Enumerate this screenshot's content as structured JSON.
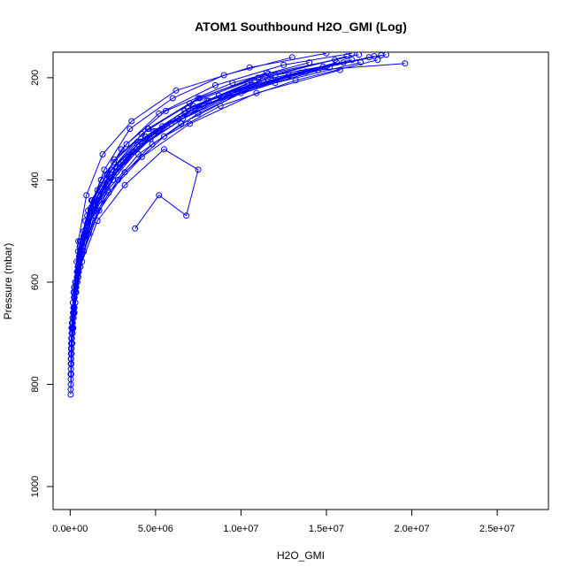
{
  "chart_data": {
    "type": "line",
    "title": "ATOM1 Southbound H2O_GMI (Log)",
    "xlabel": "H2O_GMI",
    "ylabel": "Pressure (mbar)",
    "xlim": [
      -1000000,
      28000000
    ],
    "ylim": [
      1045,
      150
    ],
    "y_reversed": true,
    "grid": false,
    "legend": "none",
    "markers": "open-circle",
    "series_color": "#0000ff",
    "x_ticks": [
      {
        "value": 0,
        "label": "0.0e+00"
      },
      {
        "value": 5000000,
        "label": "5.0e+06"
      },
      {
        "value": 10000000,
        "label": "1.0e+07"
      },
      {
        "value": 15000000,
        "label": "1.5e+07"
      },
      {
        "value": 20000000,
        "label": "2.0e+07"
      },
      {
        "value": 25000000,
        "label": "2.5e+07"
      }
    ],
    "y_ticks": [
      {
        "value": 200,
        "label": "200"
      },
      {
        "value": 400,
        "label": "400"
      },
      {
        "value": 600,
        "label": "600"
      },
      {
        "value": 800,
        "label": "800"
      },
      {
        "value": 1000,
        "label": "1000"
      }
    ],
    "series": [
      {
        "values": [
          [
            30000,
            820
          ],
          [
            60000,
            780
          ],
          [
            120000,
            720
          ],
          [
            250000,
            650
          ],
          [
            500000,
            560
          ],
          [
            1000000,
            470
          ],
          [
            2000000,
            380
          ],
          [
            3500000,
            300
          ],
          [
            6000000,
            240
          ],
          [
            9000000,
            195
          ],
          [
            13000000,
            160
          ]
        ]
      },
      {
        "values": [
          [
            40000,
            800
          ],
          [
            90000,
            740
          ],
          [
            200000,
            670
          ],
          [
            400000,
            590
          ],
          [
            800000,
            500
          ],
          [
            1600000,
            420
          ],
          [
            3000000,
            340
          ],
          [
            5200000,
            270
          ],
          [
            8500000,
            215
          ],
          [
            12500000,
            175
          ],
          [
            16500000,
            152
          ]
        ]
      },
      {
        "values": [
          [
            50000,
            760
          ],
          [
            110000,
            700
          ],
          [
            260000,
            630
          ],
          [
            600000,
            540
          ],
          [
            1200000,
            460
          ],
          [
            2400000,
            380
          ],
          [
            4200000,
            310
          ],
          [
            7000000,
            250
          ],
          [
            11000000,
            200
          ],
          [
            15500000,
            165
          ]
        ]
      },
      {
        "values": [
          [
            60000,
            730
          ],
          [
            150000,
            680
          ],
          [
            350000,
            610
          ],
          [
            750000,
            530
          ],
          [
            1500000,
            450
          ],
          [
            2900000,
            375
          ],
          [
            5000000,
            305
          ],
          [
            8000000,
            245
          ],
          [
            12000000,
            195
          ],
          [
            18500000,
            155
          ]
        ]
      },
      {
        "values": [
          [
            30000,
            780
          ],
          [
            70000,
            720
          ],
          [
            160000,
            640
          ],
          [
            380000,
            560
          ],
          [
            900000,
            480
          ],
          [
            1800000,
            400
          ],
          [
            3300000,
            330
          ],
          [
            5600000,
            265
          ],
          [
            9500000,
            210
          ],
          [
            14000000,
            170
          ]
        ]
      },
      {
        "values": [
          [
            80000,
            710
          ],
          [
            220000,
            650
          ],
          [
            500000,
            580
          ],
          [
            1100000,
            500
          ],
          [
            2200000,
            420
          ],
          [
            4000000,
            350
          ],
          [
            6500000,
            290
          ],
          [
            10000000,
            230
          ],
          [
            14500000,
            185
          ],
          [
            19600000,
            172
          ]
        ]
      },
      {
        "values": [
          [
            45000,
            770
          ],
          [
            100000,
            710
          ],
          [
            230000,
            620
          ],
          [
            480000,
            520
          ],
          [
            950000,
            430
          ],
          [
            1900000,
            350
          ],
          [
            3600000,
            285
          ],
          [
            6200000,
            225
          ],
          [
            10500000,
            180
          ],
          [
            15000000,
            152
          ]
        ]
      },
      {
        "values": [
          [
            70000,
            740
          ],
          [
            180000,
            690
          ],
          [
            420000,
            600
          ],
          [
            850000,
            510
          ],
          [
            1700000,
            440
          ],
          [
            3100000,
            365
          ],
          [
            5400000,
            295
          ],
          [
            8700000,
            235
          ],
          [
            13500000,
            190
          ],
          [
            17500000,
            160
          ]
        ]
      },
      {
        "values": [
          [
            55000,
            750
          ],
          [
            130000,
            680
          ],
          [
            300000,
            600
          ],
          [
            650000,
            520
          ],
          [
            1300000,
            440
          ],
          [
            2600000,
            360
          ],
          [
            4600000,
            300
          ],
          [
            7600000,
            240
          ],
          [
            11500000,
            190
          ]
        ]
      },
      {
        "values": [
          [
            90000,
            720
          ],
          [
            250000,
            660
          ],
          [
            600000,
            570
          ],
          [
            1400000,
            470
          ],
          [
            2800000,
            400
          ],
          [
            4800000,
            330
          ],
          [
            7500000,
            270
          ],
          [
            11000000,
            215
          ],
          [
            16000000,
            170
          ]
        ]
      },
      {
        "values": [
          [
            35000,
            790
          ],
          [
            80000,
            730
          ],
          [
            190000,
            660
          ],
          [
            450000,
            580
          ],
          [
            1000000,
            490
          ],
          [
            2100000,
            410
          ],
          [
            3900000,
            340
          ],
          [
            6600000,
            280
          ],
          [
            10200000,
            225
          ],
          [
            15200000,
            180
          ]
        ]
      },
      {
        "values": [
          [
            65000,
            720
          ],
          [
            170000,
            660
          ],
          [
            400000,
            580
          ],
          [
            1000000,
            490
          ],
          [
            2500000,
            400
          ],
          [
            4500000,
            320
          ],
          [
            7300000,
            260
          ],
          [
            12000000,
            210
          ],
          [
            17000000,
            170
          ]
        ]
      },
      {
        "values": [
          [
            40000,
            760
          ],
          [
            95000,
            700
          ],
          [
            220000,
            630
          ],
          [
            520000,
            550
          ],
          [
            1150000,
            470
          ],
          [
            2300000,
            395
          ],
          [
            4100000,
            325
          ],
          [
            6900000,
            260
          ],
          [
            10800000,
            205
          ],
          [
            16200000,
            158
          ]
        ]
      },
      {
        "values": [
          [
            100000,
            700
          ],
          [
            300000,
            640
          ],
          [
            700000,
            560
          ],
          [
            1600000,
            480
          ],
          [
            3200000,
            410
          ],
          [
            5500000,
            340
          ],
          [
            7500000,
            380
          ],
          [
            6800000,
            470
          ],
          [
            5200000,
            430
          ],
          [
            3800000,
            495
          ]
        ]
      },
      {
        "values": [
          [
            50000,
            730
          ],
          [
            140000,
            670
          ],
          [
            330000,
            600
          ],
          [
            780000,
            510
          ],
          [
            1650000,
            430
          ],
          [
            3400000,
            355
          ],
          [
            5900000,
            290
          ],
          [
            9300000,
            235
          ],
          [
            13800000,
            188
          ],
          [
            18200000,
            156
          ]
        ]
      },
      {
        "values": [
          [
            60000,
            760
          ],
          [
            140000,
            700
          ],
          [
            320000,
            620
          ],
          [
            700000,
            540
          ],
          [
            1400000,
            460
          ],
          [
            2700000,
            385
          ],
          [
            4700000,
            320
          ],
          [
            7800000,
            255
          ],
          [
            11800000,
            205
          ]
        ]
      },
      {
        "values": [
          [
            30000,
            810
          ],
          [
            65000,
            760
          ],
          [
            150000,
            690
          ],
          [
            340000,
            610
          ],
          [
            720000,
            530
          ],
          [
            1450000,
            450
          ],
          [
            2750000,
            375
          ],
          [
            4900000,
            305
          ],
          [
            8100000,
            245
          ],
          [
            12800000,
            195
          ],
          [
            17800000,
            158
          ]
        ]
      },
      {
        "values": [
          [
            80000,
            690
          ],
          [
            200000,
            620
          ],
          [
            460000,
            540
          ],
          [
            1050000,
            460
          ],
          [
            2150000,
            390
          ],
          [
            3950000,
            325
          ],
          [
            6700000,
            265
          ],
          [
            10400000,
            212
          ]
        ]
      },
      {
        "values": [
          [
            45000,
            740
          ],
          [
            105000,
            680
          ],
          [
            240000,
            610
          ],
          [
            560000,
            530
          ],
          [
            1200000,
            455
          ],
          [
            2450000,
            380
          ],
          [
            4400000,
            315
          ],
          [
            7200000,
            255
          ],
          [
            11300000,
            205
          ],
          [
            16500000,
            165
          ]
        ]
      },
      {
        "values": [
          [
            70000,
            710
          ],
          [
            190000,
            650
          ],
          [
            450000,
            570
          ],
          [
            1000000,
            490
          ],
          [
            2000000,
            410
          ],
          [
            3700000,
            345
          ],
          [
            6300000,
            280
          ],
          [
            9800000,
            225
          ],
          [
            14800000,
            178
          ]
        ]
      },
      {
        "values": [
          [
            55000,
            740
          ],
          [
            150000,
            690
          ],
          [
            350000,
            620
          ],
          [
            800000,
            540
          ],
          [
            1700000,
            460
          ],
          [
            3200000,
            385
          ],
          [
            5500000,
            315
          ],
          [
            8800000,
            255
          ],
          [
            13200000,
            205
          ],
          [
            18000000,
            165
          ]
        ]
      },
      {
        "values": [
          [
            35000,
            780
          ],
          [
            85000,
            720
          ],
          [
            200000,
            650
          ],
          [
            470000,
            570
          ],
          [
            1050000,
            485
          ],
          [
            2150000,
            400
          ],
          [
            3950000,
            330
          ],
          [
            6700000,
            270
          ],
          [
            10600000,
            215
          ],
          [
            15600000,
            170
          ]
        ]
      },
      {
        "values": [
          [
            75000,
            720
          ],
          [
            210000,
            660
          ],
          [
            480000,
            590
          ],
          [
            1080000,
            505
          ],
          [
            2250000,
            425
          ],
          [
            4200000,
            355
          ],
          [
            7000000,
            290
          ],
          [
            10900000,
            230
          ],
          [
            15800000,
            185
          ]
        ]
      },
      {
        "values": [
          [
            40000,
            750
          ],
          [
            100000,
            690
          ],
          [
            250000,
            610
          ],
          [
            580000,
            520
          ],
          [
            1250000,
            440
          ],
          [
            2550000,
            365
          ],
          [
            4550000,
            300
          ],
          [
            7500000,
            240
          ],
          [
            11600000,
            192
          ],
          [
            16900000,
            155
          ]
        ]
      }
    ]
  }
}
